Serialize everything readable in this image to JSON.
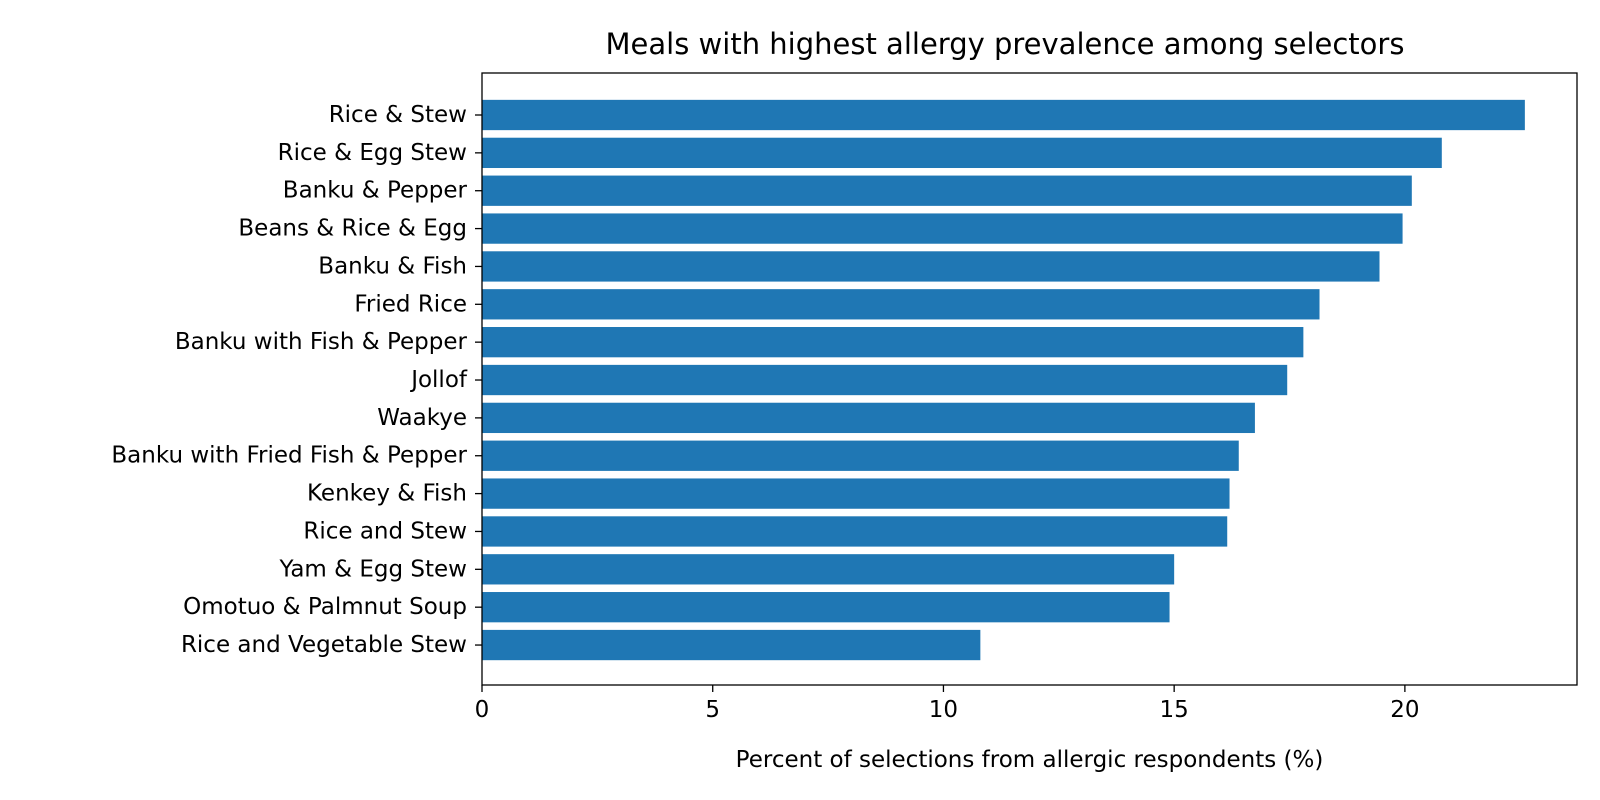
{
  "chart_data": {
    "type": "bar",
    "orientation": "horizontal",
    "title": "Meals with highest allergy prevalence among selectors",
    "xlabel": "Percent of selections from allergic respondents (%)",
    "ylabel": "",
    "categories": [
      "Rice & Stew",
      "Rice & Egg Stew",
      "Banku & Pepper",
      "Beans & Rice & Egg",
      "Banku & Fish",
      "Fried Rice",
      "Banku with Fish & Pepper",
      "Jollof",
      "Waakye",
      "Banku with Fried Fish & Pepper",
      "Kenkey & Fish",
      "Rice and Stew",
      "Yam & Egg Stew",
      "Omotuo & Palmnut Soup",
      "Rice and Vegetable Stew"
    ],
    "values": [
      22.6,
      20.8,
      20.15,
      19.95,
      19.45,
      18.15,
      17.8,
      17.45,
      16.75,
      16.4,
      16.2,
      16.15,
      15.0,
      14.9,
      10.8
    ],
    "xlim": [
      0,
      23.73
    ],
    "xticks": [
      0,
      5,
      10,
      15,
      20
    ],
    "grid": false,
    "bar_color": "#1f77b4"
  }
}
